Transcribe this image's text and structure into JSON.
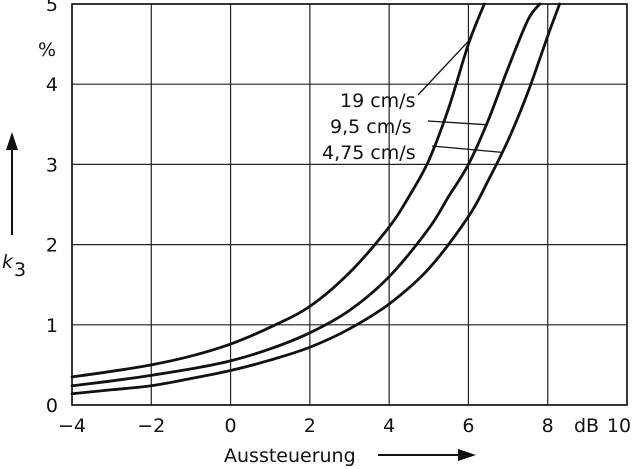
{
  "chart_data": {
    "type": "line",
    "title": "",
    "xlabel": "Aussteuerung",
    "ylabel": "k",
    "ylabel_subscript": "3",
    "y_unit": "%",
    "x_unit": "dB",
    "xlim": [
      -4,
      10
    ],
    "ylim": [
      0,
      5
    ],
    "x_ticks": [
      -4,
      -2,
      0,
      2,
      4,
      6,
      8,
      10
    ],
    "y_ticks": [
      0,
      1,
      2,
      3,
      4,
      5
    ],
    "grid": true,
    "series": [
      {
        "name": "19 cm/s",
        "x": [
          -4,
          -3,
          -2,
          -1,
          0,
          1,
          2,
          3,
          4,
          4.5,
          5,
          5.5,
          6,
          6.4
        ],
        "y": [
          0.35,
          0.42,
          0.5,
          0.61,
          0.76,
          0.97,
          1.23,
          1.65,
          2.22,
          2.6,
          3.05,
          3.7,
          4.5,
          5.0
        ]
      },
      {
        "name": "9,5 cm/s",
        "x": [
          -4,
          -3,
          -2,
          -1,
          0,
          1,
          2,
          3,
          4,
          5,
          5.5,
          6,
          6.5,
          7,
          7.5,
          7.8
        ],
        "y": [
          0.24,
          0.3,
          0.37,
          0.45,
          0.55,
          0.7,
          0.9,
          1.18,
          1.6,
          2.2,
          2.6,
          3.0,
          3.55,
          4.2,
          4.8,
          5.0
        ]
      },
      {
        "name": "4,75 cm/s",
        "x": [
          -4,
          -3,
          -2,
          -1,
          0,
          1,
          2,
          3,
          4,
          5,
          6,
          6.5,
          7,
          7.5,
          8,
          8.3
        ],
        "y": [
          0.14,
          0.19,
          0.24,
          0.33,
          0.43,
          0.56,
          0.72,
          0.95,
          1.26,
          1.7,
          2.35,
          2.8,
          3.3,
          3.9,
          4.6,
          5.0
        ]
      }
    ],
    "legend_labels": [
      "19 cm/s",
      "9,5 cm/s",
      "4,75 cm/s"
    ],
    "legend_placement": "inside-center-right, with leader lines to curves"
  }
}
